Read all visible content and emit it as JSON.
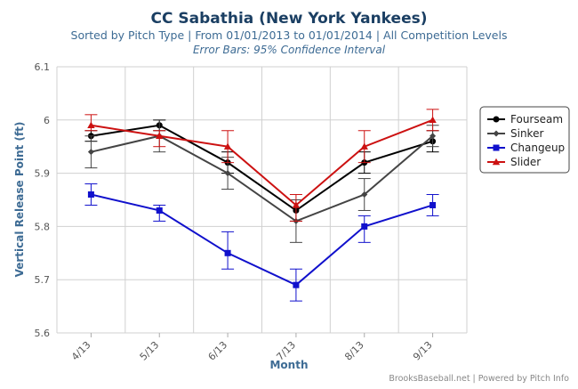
{
  "chart_data": {
    "type": "line",
    "title": "CC Sabathia (New York Yankees)",
    "subtitle": "Sorted by Pitch Type | From 01/01/2013 to 01/01/2014 | All Competition Levels",
    "note": "Error Bars: 95% Confidence Interval",
    "xlabel": "Month",
    "ylabel": "Vertical Release Point (ft)",
    "categories": [
      "4/13",
      "5/13",
      "6/13",
      "7/13",
      "8/13",
      "9/13"
    ],
    "ylim": [
      5.6,
      6.1
    ],
    "yticks": [
      "5.6",
      "5.7",
      "5.8",
      "5.9",
      "6",
      "6.1"
    ],
    "grid": true,
    "legend_position": "right",
    "series": [
      {
        "name": "Fourseam",
        "color": "#000000",
        "marker": "circle",
        "values": [
          5.97,
          5.99,
          5.92,
          5.83,
          5.92,
          5.96
        ],
        "lower": [
          5.96,
          5.98,
          5.9,
          5.81,
          5.9,
          5.94
        ],
        "upper": [
          5.98,
          6.0,
          5.94,
          5.85,
          5.94,
          5.98
        ]
      },
      {
        "name": "Sinker",
        "color": "#444444",
        "marker": "diamond",
        "values": [
          5.94,
          5.97,
          5.9,
          5.81,
          5.86,
          5.97
        ],
        "lower": [
          5.91,
          5.94,
          5.87,
          5.77,
          5.83,
          5.95
        ],
        "upper": [
          5.97,
          6.0,
          5.93,
          5.85,
          5.89,
          5.99
        ]
      },
      {
        "name": "Changeup",
        "color": "#1010cc",
        "marker": "square",
        "values": [
          5.86,
          5.83,
          5.75,
          5.69,
          5.8,
          5.84
        ],
        "lower": [
          5.84,
          5.81,
          5.72,
          5.66,
          5.77,
          5.82
        ],
        "upper": [
          5.88,
          5.84,
          5.79,
          5.72,
          5.82,
          5.86
        ]
      },
      {
        "name": "Slider",
        "color": "#cc1111",
        "marker": "triangle",
        "values": [
          5.99,
          5.97,
          5.95,
          5.84,
          5.95,
          6.0
        ],
        "lower": [
          5.98,
          5.95,
          5.92,
          5.81,
          5.92,
          5.98
        ],
        "upper": [
          6.01,
          5.98,
          5.98,
          5.86,
          5.98,
          6.02
        ]
      }
    ]
  },
  "footer": {
    "credit": "BrooksBaseball.net | Powered by Pitch Info"
  }
}
